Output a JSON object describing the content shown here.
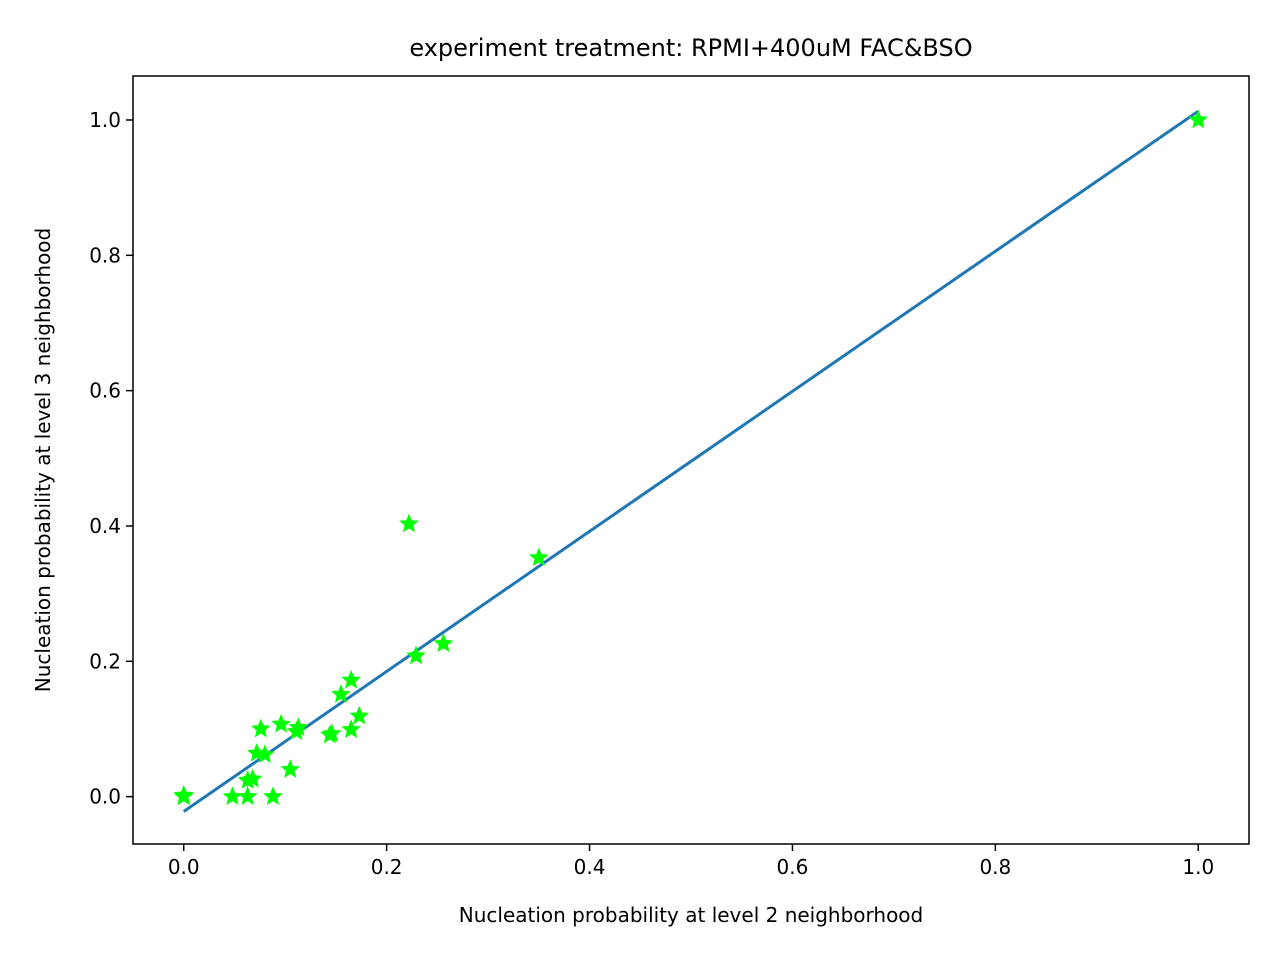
{
  "chart_data": {
    "type": "scatter",
    "title": "experiment treatment: RPMI+400uM FAC&BSO",
    "xlabel": "Nucleation probability at level 2 neighborhood",
    "ylabel": "Nucleation probability at level 3 neighborhood",
    "xlim": [
      -0.05,
      1.05
    ],
    "ylim": [
      -0.07,
      1.065
    ],
    "xticks": [
      "0.0",
      "0.2",
      "0.4",
      "0.6",
      "0.8",
      "1.0"
    ],
    "yticks": [
      "0.0",
      "0.2",
      "0.4",
      "0.6",
      "0.8",
      "1.0"
    ],
    "grid": false,
    "legend": "none",
    "series": [
      {
        "marker": "star",
        "color": "#00ff00",
        "points": [
          [
            0.0,
            0.0
          ],
          [
            0.0,
            0.0
          ],
          [
            0.0,
            0.002
          ],
          [
            0.048,
            0.0
          ],
          [
            0.063,
            0.0
          ],
          [
            0.088,
            0.0
          ],
          [
            0.063,
            0.024
          ],
          [
            0.068,
            0.026
          ],
          [
            0.105,
            0.04
          ],
          [
            0.072,
            0.064
          ],
          [
            0.08,
            0.062
          ],
          [
            0.076,
            0.1
          ],
          [
            0.096,
            0.107
          ],
          [
            0.111,
            0.096
          ],
          [
            0.113,
            0.102
          ],
          [
            0.144,
            0.091
          ],
          [
            0.146,
            0.093
          ],
          [
            0.165,
            0.099
          ],
          [
            0.173,
            0.119
          ],
          [
            0.155,
            0.151
          ],
          [
            0.165,
            0.172
          ],
          [
            0.229,
            0.208
          ],
          [
            0.256,
            0.226
          ],
          [
            0.35,
            0.353
          ],
          [
            0.222,
            0.403
          ],
          [
            1.0,
            1.0
          ]
        ]
      },
      {
        "type": "line",
        "color": "#1f77b4",
        "x": [
          0.0,
          1.0
        ],
        "y": [
          -0.022,
          1.013
        ]
      }
    ]
  }
}
